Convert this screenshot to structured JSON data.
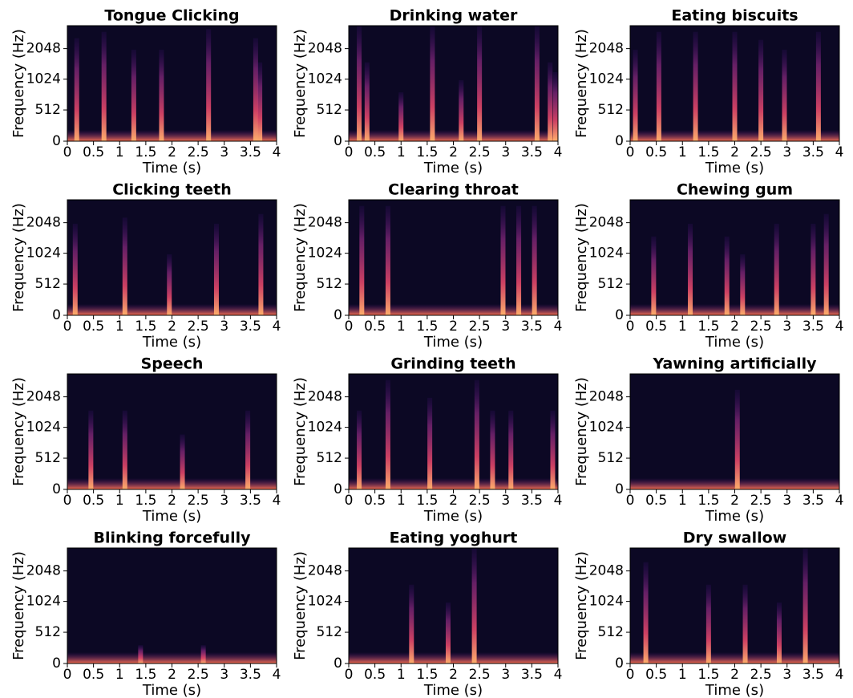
{
  "chart_data": [
    {
      "type": "spectrogram",
      "title": "Tongue Clicking",
      "xlabel": "Time (s)",
      "ylabel": "Frequency (Hz)",
      "xlim": [
        0,
        4
      ],
      "xticks": [
        0,
        0.5,
        1,
        1.5,
        2,
        2.5,
        3,
        3.5,
        4
      ],
      "ylim": [
        0,
        3450
      ],
      "yticks": [
        0,
        512,
        1024,
        2048
      ],
      "yscale": "symlog",
      "linthresh": 1000,
      "colormap": "magma",
      "bursts": [
        {
          "time": 0.18,
          "top": 2600
        },
        {
          "time": 0.7,
          "top": 3000
        },
        {
          "time": 1.27,
          "top": 2000
        },
        {
          "time": 1.8,
          "top": 2000
        },
        {
          "time": 2.7,
          "top": 3200
        },
        {
          "time": 3.6,
          "top": 2600
        },
        {
          "time": 3.68,
          "top": 1500
        }
      ]
    },
    {
      "type": "spectrogram",
      "title": "Drinking water",
      "xlabel": "Time (s)",
      "ylabel": "Frequency (Hz)",
      "xlim": [
        0,
        4
      ],
      "xticks": [
        0,
        0.5,
        1,
        1.5,
        2,
        2.5,
        3,
        3.5,
        4
      ],
      "ylim": [
        0,
        3450
      ],
      "yticks": [
        0,
        512,
        1024,
        2048
      ],
      "yscale": "symlog",
      "linthresh": 1000,
      "colormap": "magma",
      "bursts": [
        {
          "time": 0.2,
          "top": 3400
        },
        {
          "time": 0.35,
          "top": 1500
        },
        {
          "time": 1.0,
          "top": 800
        },
        {
          "time": 1.6,
          "top": 3400
        },
        {
          "time": 2.15,
          "top": 1000
        },
        {
          "time": 2.5,
          "top": 3400
        },
        {
          "time": 3.6,
          "top": 3400
        },
        {
          "time": 3.85,
          "top": 1500
        },
        {
          "time": 3.95,
          "top": 1200
        }
      ]
    },
    {
      "type": "spectrogram",
      "title": "Eating biscuits",
      "xlabel": "Time (s)",
      "ylabel": "Frequency (Hz)",
      "xlim": [
        0,
        4
      ],
      "xticks": [
        0,
        0.5,
        1,
        1.5,
        2,
        2.5,
        3,
        3.5,
        4
      ],
      "ylim": [
        0,
        3450
      ],
      "yticks": [
        0,
        512,
        1024,
        2048
      ],
      "yscale": "symlog",
      "linthresh": 1000,
      "colormap": "magma",
      "bursts": [
        {
          "time": 0.1,
          "top": 2000
        },
        {
          "time": 0.55,
          "top": 3000
        },
        {
          "time": 1.25,
          "top": 3000
        },
        {
          "time": 2.0,
          "top": 3000
        },
        {
          "time": 2.5,
          "top": 2500
        },
        {
          "time": 2.95,
          "top": 2000
        },
        {
          "time": 3.6,
          "top": 3000
        }
      ]
    },
    {
      "type": "spectrogram",
      "title": "Clicking teeth",
      "xlabel": "Time (s)",
      "ylabel": "Frequency (Hz)",
      "xlim": [
        0,
        4
      ],
      "xticks": [
        0,
        0.5,
        1,
        1.5,
        2,
        2.5,
        3,
        3.5,
        4
      ],
      "ylim": [
        0,
        3450
      ],
      "yticks": [
        0,
        512,
        1024,
        2048
      ],
      "yscale": "symlog",
      "linthresh": 1000,
      "colormap": "magma",
      "bursts": [
        {
          "time": 0.15,
          "top": 2000
        },
        {
          "time": 1.1,
          "top": 2300
        },
        {
          "time": 1.95,
          "top": 1000
        },
        {
          "time": 2.85,
          "top": 2000
        },
        {
          "time": 3.7,
          "top": 2500
        }
      ]
    },
    {
      "type": "spectrogram",
      "title": "Clearing throat",
      "xlabel": "Time (s)",
      "ylabel": "Frequency (Hz)",
      "xlim": [
        0,
        4
      ],
      "xticks": [
        0,
        0.5,
        1,
        1.5,
        2,
        2.5,
        3,
        3.5,
        4
      ],
      "ylim": [
        0,
        3450
      ],
      "yticks": [
        0,
        512,
        1024,
        2048
      ],
      "yscale": "symlog",
      "linthresh": 1000,
      "colormap": "magma",
      "bursts": [
        {
          "time": 0.25,
          "top": 3000
        },
        {
          "time": 0.75,
          "top": 3000
        },
        {
          "time": 2.95,
          "top": 3000
        },
        {
          "time": 3.25,
          "top": 3000
        },
        {
          "time": 3.55,
          "top": 3000
        }
      ]
    },
    {
      "type": "spectrogram",
      "title": "Chewing gum",
      "xlabel": "Time (s)",
      "ylabel": "Frequency (Hz)",
      "xlim": [
        0,
        4
      ],
      "xticks": [
        0,
        0.5,
        1,
        1.5,
        2,
        2.5,
        3,
        3.5,
        4
      ],
      "ylim": [
        0,
        3450
      ],
      "yticks": [
        0,
        512,
        1024,
        2048
      ],
      "yscale": "symlog",
      "linthresh": 1000,
      "colormap": "magma",
      "bursts": [
        {
          "time": 0.45,
          "top": 1500
        },
        {
          "time": 1.15,
          "top": 2000
        },
        {
          "time": 1.85,
          "top": 1500
        },
        {
          "time": 2.15,
          "top": 1000
        },
        {
          "time": 2.8,
          "top": 2000
        },
        {
          "time": 3.5,
          "top": 2000
        },
        {
          "time": 3.75,
          "top": 2500
        }
      ]
    },
    {
      "type": "spectrogram",
      "title": "Speech",
      "xlabel": "Time (s)",
      "ylabel": "Frequency (Hz)",
      "xlim": [
        0,
        4
      ],
      "xticks": [
        0,
        0.5,
        1,
        1.5,
        2,
        2.5,
        3,
        3.5,
        4
      ],
      "ylim": [
        0,
        3450
      ],
      "yticks": [
        0,
        512,
        1024,
        2048
      ],
      "yscale": "symlog",
      "linthresh": 1000,
      "colormap": "magma",
      "bursts": [
        {
          "time": 0.45,
          "top": 1500
        },
        {
          "time": 1.1,
          "top": 1500
        },
        {
          "time": 2.2,
          "top": 900
        },
        {
          "time": 3.45,
          "top": 1500
        }
      ]
    },
    {
      "type": "spectrogram",
      "title": "Grinding teeth",
      "xlabel": "Time (s)",
      "ylabel": "Frequency (Hz)",
      "xlim": [
        0,
        4
      ],
      "xticks": [
        0,
        0.5,
        1,
        1.5,
        2,
        2.5,
        3,
        3.5,
        4
      ],
      "ylim": [
        0,
        3450
      ],
      "yticks": [
        0,
        512,
        1024,
        2048
      ],
      "yscale": "symlog",
      "linthresh": 1000,
      "colormap": "magma",
      "bursts": [
        {
          "time": 0.2,
          "top": 1500
        },
        {
          "time": 0.75,
          "top": 3000
        },
        {
          "time": 1.55,
          "top": 2000
        },
        {
          "time": 2.45,
          "top": 3000
        },
        {
          "time": 2.75,
          "top": 1500
        },
        {
          "time": 3.1,
          "top": 1500
        },
        {
          "time": 3.9,
          "top": 1500
        }
      ]
    },
    {
      "type": "spectrogram",
      "title": "Yawning artificially",
      "xlabel": "Time (s)",
      "ylabel": "Frequency (Hz)",
      "xlim": [
        0,
        4
      ],
      "xticks": [
        0,
        0.5,
        1,
        1.5,
        2,
        2.5,
        3,
        3.5,
        4
      ],
      "ylim": [
        0,
        3450
      ],
      "yticks": [
        0,
        512,
        1024,
        2048
      ],
      "yscale": "symlog",
      "linthresh": 1000,
      "colormap": "magma",
      "bursts": [
        {
          "time": 2.05,
          "top": 2400
        }
      ]
    },
    {
      "type": "spectrogram",
      "title": "Blinking forcefully",
      "xlabel": "Time (s)",
      "ylabel": "Frequency (Hz)",
      "xlim": [
        0,
        4
      ],
      "xticks": [
        0,
        0.5,
        1,
        1.5,
        2,
        2.5,
        3,
        3.5,
        4
      ],
      "ylim": [
        0,
        3450
      ],
      "yticks": [
        0,
        512,
        1024,
        2048
      ],
      "yscale": "symlog",
      "linthresh": 1000,
      "colormap": "magma",
      "bursts": [
        {
          "time": 1.4,
          "top": 300
        },
        {
          "time": 2.6,
          "top": 300
        }
      ]
    },
    {
      "type": "spectrogram",
      "title": "Eating yoghurt",
      "xlabel": "Time (s)",
      "ylabel": "Frequency (Hz)",
      "xlim": [
        0,
        4
      ],
      "xticks": [
        0,
        0.5,
        1,
        1.5,
        2,
        2.5,
        3,
        3.5,
        4
      ],
      "ylim": [
        0,
        3450
      ],
      "yticks": [
        0,
        512,
        1024,
        2048
      ],
      "yscale": "symlog",
      "linthresh": 1000,
      "colormap": "magma",
      "bursts": [
        {
          "time": 1.2,
          "top": 1500
        },
        {
          "time": 1.9,
          "top": 1000
        },
        {
          "time": 2.4,
          "top": 3400
        }
      ]
    },
    {
      "type": "spectrogram",
      "title": "Dry swallow",
      "xlabel": "Time (s)",
      "ylabel": "Frequency (Hz)",
      "xlim": [
        0,
        4
      ],
      "xticks": [
        0,
        0.5,
        1,
        1.5,
        2,
        2.5,
        3,
        3.5,
        4
      ],
      "ylim": [
        0,
        3450
      ],
      "yticks": [
        0,
        512,
        1024,
        2048
      ],
      "yscale": "symlog",
      "linthresh": 1000,
      "colormap": "magma",
      "bursts": [
        {
          "time": 0.3,
          "top": 2500
        },
        {
          "time": 1.5,
          "top": 1500
        },
        {
          "time": 2.2,
          "top": 1500
        },
        {
          "time": 2.85,
          "top": 1000
        },
        {
          "time": 3.35,
          "top": 3400
        }
      ]
    }
  ]
}
